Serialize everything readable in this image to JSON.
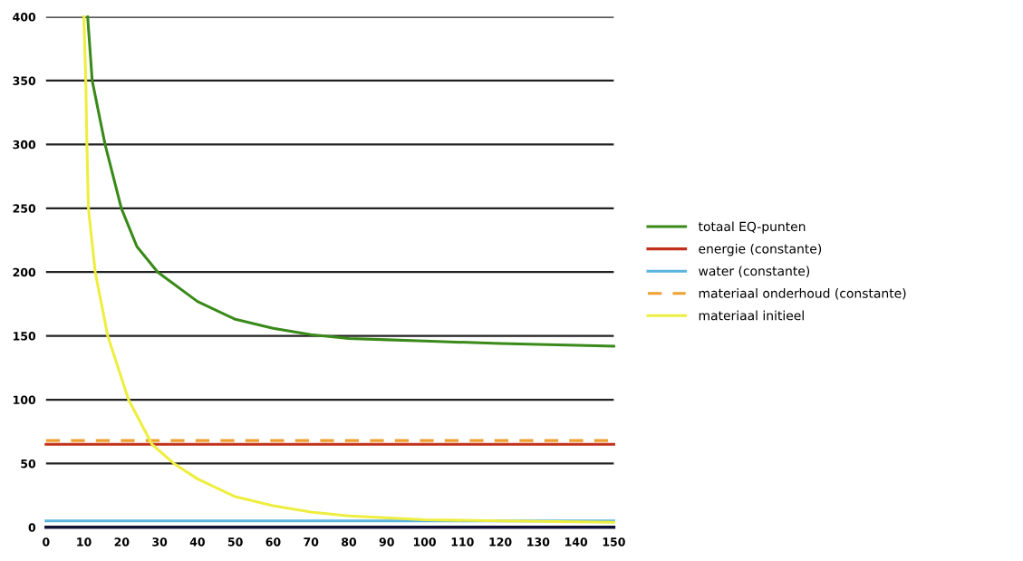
{
  "chart_data": {
    "type": "line",
    "xlim": [
      0,
      150
    ],
    "ylim": [
      0,
      400
    ],
    "xticks": [
      0,
      10,
      20,
      30,
      40,
      50,
      60,
      70,
      80,
      90,
      100,
      110,
      120,
      130,
      140,
      150
    ],
    "yticks": [
      0,
      50,
      100,
      150,
      200,
      250,
      300,
      350,
      400
    ],
    "grid": "y",
    "legend": "right",
    "marker": "none",
    "series": [
      {
        "name": "totaal EQ-punten",
        "color": "#3a8a1a",
        "line_style": "solid",
        "x": [
          11,
          12.2,
          15.6,
          19.9,
          24,
          29.5,
          40,
          50,
          60,
          70,
          80,
          90,
          100,
          120,
          150
        ],
        "values": [
          400,
          350,
          300,
          250,
          220,
          200,
          177,
          163,
          156,
          151,
          148,
          147,
          146,
          144,
          142
        ]
      },
      {
        "name": "energie (constante)",
        "color": "#c0301a",
        "line_style": "solid",
        "x": [
          0,
          150
        ],
        "values": [
          65,
          65
        ]
      },
      {
        "name": "water (constante)",
        "color": "#5ab4e0",
        "line_style": "solid",
        "x": [
          0,
          150
        ],
        "values": [
          5,
          5
        ]
      },
      {
        "name": "materiaal onderhoud (constante)",
        "color": "#f0a030",
        "line_style": "dashed",
        "x": [
          0,
          150
        ],
        "values": [
          68,
          68
        ]
      },
      {
        "name": "materiaal initieel",
        "color": "#eeee40",
        "line_style": "solid",
        "x": [
          10,
          10.5,
          10.8,
          11.2,
          13,
          16.3,
          21.8,
          28,
          33.8,
          40,
          50,
          60,
          70,
          80,
          100,
          120,
          150
        ],
        "values": [
          400,
          350,
          300,
          250,
          200,
          150,
          100,
          65,
          50,
          38,
          24,
          17,
          12,
          9,
          6,
          5,
          4
        ]
      }
    ]
  }
}
